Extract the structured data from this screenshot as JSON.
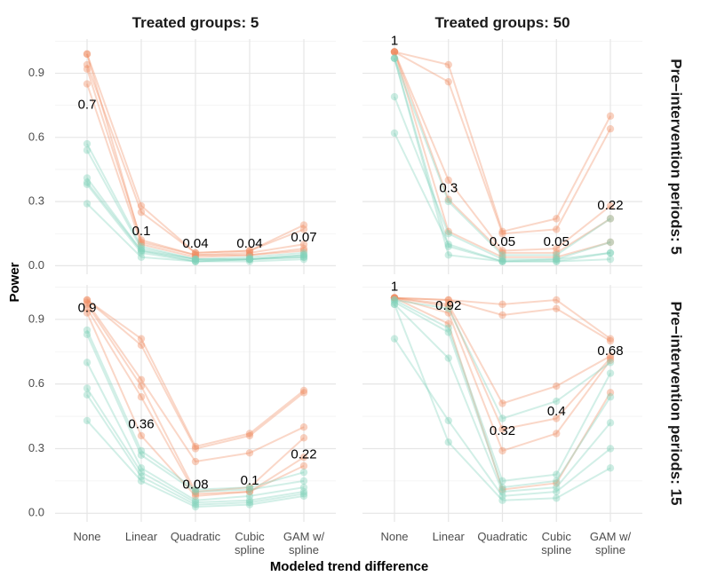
{
  "chart_data": {
    "type": "line",
    "xlabel": "Modeled trend difference",
    "ylabel": "Power",
    "categories": [
      "None",
      "Linear",
      "Quadratic",
      "Cubic\nspline",
      "GAM w/\nspline"
    ],
    "yticks": [
      "0.0",
      "0.3",
      "0.6",
      "0.9"
    ],
    "ylim": [
      -0.04,
      1.06
    ],
    "grid": true,
    "legend": "none",
    "colors": {
      "orange": "#F08B62",
      "green": "#7FD1B9"
    },
    "col_labels": [
      "Treated groups: 5",
      "Treated groups: 50"
    ],
    "row_labels": [
      "Pre−intervention periods: 5",
      "Pre−intervention periods: 15"
    ],
    "panels": [
      {
        "row": 0,
        "col": 0,
        "annotations": [
          {
            "category": "None",
            "y": 0.75,
            "label": "0.7"
          },
          {
            "category": "Linear",
            "y": 0.16,
            "label": "0.1"
          },
          {
            "category": "Quadratic",
            "y": 0.1,
            "label": "0.04"
          },
          {
            "category": "Cubic\nspline",
            "y": 0.1,
            "label": "0.04"
          },
          {
            "category": "GAM w/\nspline",
            "y": 0.13,
            "label": "0.07"
          }
        ],
        "series": [
          {
            "color": "orange",
            "values": [
              0.99,
              0.28,
              0.06,
              0.07,
              0.19
            ]
          },
          {
            "color": "orange",
            "values": [
              0.94,
              0.25,
              0.06,
              0.07,
              0.17
            ]
          },
          {
            "color": "orange",
            "values": [
              0.92,
              0.12,
              0.05,
              0.06,
              0.1
            ]
          },
          {
            "color": "orange",
            "values": [
              0.85,
              0.1,
              0.04,
              0.05,
              0.08
            ]
          },
          {
            "color": "orange",
            "values": [
              0.99,
              0.11,
              0.05,
              0.05,
              0.07
            ]
          },
          {
            "color": "green",
            "values": [
              0.57,
              0.09,
              0.03,
              0.04,
              0.06
            ]
          },
          {
            "color": "green",
            "values": [
              0.54,
              0.08,
              0.03,
              0.03,
              0.05
            ]
          },
          {
            "color": "green",
            "values": [
              0.41,
              0.07,
              0.03,
              0.03,
              0.05
            ]
          },
          {
            "color": "green",
            "values": [
              0.39,
              0.07,
              0.02,
              0.03,
              0.04
            ]
          },
          {
            "color": "green",
            "values": [
              0.38,
              0.06,
              0.02,
              0.03,
              0.04
            ]
          },
          {
            "color": "green",
            "values": [
              0.29,
              0.04,
              0.02,
              0.02,
              0.03
            ]
          }
        ]
      },
      {
        "row": 0,
        "col": 1,
        "annotations": [
          {
            "category": "None",
            "y": 1.05,
            "label": "1"
          },
          {
            "category": "Linear",
            "y": 0.36,
            "label": "0.3"
          },
          {
            "category": "Quadratic",
            "y": 0.11,
            "label": "0.05"
          },
          {
            "category": "Cubic\nspline",
            "y": 0.11,
            "label": "0.05"
          },
          {
            "category": "GAM w/\nspline",
            "y": 0.28,
            "label": "0.22"
          }
        ],
        "series": [
          {
            "color": "orange",
            "values": [
              1.0,
              0.94,
              0.16,
              0.22,
              0.7
            ]
          },
          {
            "color": "orange",
            "values": [
              1.0,
              0.86,
              0.15,
              0.17,
              0.64
            ]
          },
          {
            "color": "orange",
            "values": [
              1.0,
              0.4,
              0.07,
              0.08,
              0.28
            ]
          },
          {
            "color": "orange",
            "values": [
              1.0,
              0.31,
              0.06,
              0.06,
              0.22
            ]
          },
          {
            "color": "orange",
            "values": [
              1.0,
              0.16,
              0.04,
              0.04,
              0.11
            ]
          },
          {
            "color": "green",
            "values": [
              0.97,
              0.3,
              0.05,
              0.05,
              0.22
            ]
          },
          {
            "color": "green",
            "values": [
              0.79,
              0.15,
              0.03,
              0.03,
              0.11
            ]
          },
          {
            "color": "green",
            "values": [
              0.62,
              0.1,
              0.02,
              0.03,
              0.06
            ]
          },
          {
            "color": "green",
            "values": [
              0.97,
              0.09,
              0.02,
              0.02,
              0.06
            ]
          },
          {
            "color": "green",
            "values": [
              0.97,
              0.05,
              0.02,
              0.02,
              0.03
            ]
          }
        ]
      },
      {
        "row": 1,
        "col": 0,
        "annotations": [
          {
            "category": "None",
            "y": 0.95,
            "label": "0.9"
          },
          {
            "category": "Linear",
            "y": 0.41,
            "label": "0.36"
          },
          {
            "category": "Quadratic",
            "y": 0.13,
            "label": "0.08"
          },
          {
            "category": "Cubic\nspline",
            "y": 0.15,
            "label": "0.1"
          },
          {
            "category": "GAM w/\nspline",
            "y": 0.27,
            "label": "0.22"
          }
        ],
        "series": [
          {
            "color": "orange",
            "values": [
              0.99,
              0.81,
              0.31,
              0.37,
              0.57
            ]
          },
          {
            "color": "orange",
            "values": [
              0.99,
              0.78,
              0.3,
              0.36,
              0.56
            ]
          },
          {
            "color": "orange",
            "values": [
              0.98,
              0.62,
              0.24,
              0.28,
              0.4
            ]
          },
          {
            "color": "orange",
            "values": [
              0.97,
              0.59,
              0.1,
              0.12,
              0.35
            ]
          },
          {
            "color": "orange",
            "values": [
              0.95,
              0.54,
              0.09,
              0.1,
              0.26
            ]
          },
          {
            "color": "orange",
            "values": [
              0.93,
              0.36,
              0.08,
              0.1,
              0.22
            ]
          },
          {
            "color": "green",
            "values": [
              0.85,
              0.29,
              0.11,
              0.12,
              0.19
            ]
          },
          {
            "color": "green",
            "values": [
              0.83,
              0.27,
              0.1,
              0.11,
              0.15
            ]
          },
          {
            "color": "green",
            "values": [
              0.7,
              0.21,
              0.06,
              0.08,
              0.12
            ]
          },
          {
            "color": "green",
            "values": [
              0.58,
              0.19,
              0.05,
              0.06,
              0.1
            ]
          },
          {
            "color": "green",
            "values": [
              0.55,
              0.17,
              0.04,
              0.05,
              0.09
            ]
          },
          {
            "color": "green",
            "values": [
              0.43,
              0.15,
              0.03,
              0.04,
              0.08
            ]
          }
        ]
      },
      {
        "row": 1,
        "col": 1,
        "annotations": [
          {
            "category": "None",
            "y": 1.05,
            "label": "1"
          },
          {
            "category": "Linear",
            "y": 0.96,
            "label": "0.92"
          },
          {
            "category": "Quadratic",
            "y": 0.38,
            "label": "0.32"
          },
          {
            "category": "Cubic\nspline",
            "y": 0.47,
            "label": "0.4"
          },
          {
            "category": "GAM w/\nspline",
            "y": 0.75,
            "label": "0.68"
          }
        ],
        "series": [
          {
            "color": "orange",
            "values": [
              1.0,
              0.99,
              0.97,
              0.99,
              0.81
            ]
          },
          {
            "color": "orange",
            "values": [
              1.0,
              0.99,
              0.92,
              0.95,
              0.8
            ]
          },
          {
            "color": "orange",
            "values": [
              1.0,
              0.97,
              0.51,
              0.59,
              0.73
            ]
          },
          {
            "color": "orange",
            "values": [
              1.0,
              0.96,
              0.39,
              0.44,
              0.72
            ]
          },
          {
            "color": "orange",
            "values": [
              1.0,
              0.93,
              0.29,
              0.37,
              0.71
            ]
          },
          {
            "color": "orange",
            "values": [
              1.0,
              0.88,
              0.11,
              0.14,
              0.56
            ]
          },
          {
            "color": "green",
            "values": [
              0.99,
              0.95,
              0.44,
              0.52,
              0.7
            ]
          },
          {
            "color": "green",
            "values": [
              0.99,
              0.86,
              0.15,
              0.18,
              0.65
            ]
          },
          {
            "color": "green",
            "values": [
              0.98,
              0.84,
              0.12,
              0.15,
              0.54
            ]
          },
          {
            "color": "green",
            "values": [
              0.97,
              0.72,
              0.1,
              0.12,
              0.42
            ]
          },
          {
            "color": "green",
            "values": [
              0.81,
              0.43,
              0.08,
              0.1,
              0.3
            ]
          },
          {
            "color": "green",
            "values": [
              0.97,
              0.33,
              0.06,
              0.07,
              0.21
            ]
          }
        ]
      }
    ]
  }
}
